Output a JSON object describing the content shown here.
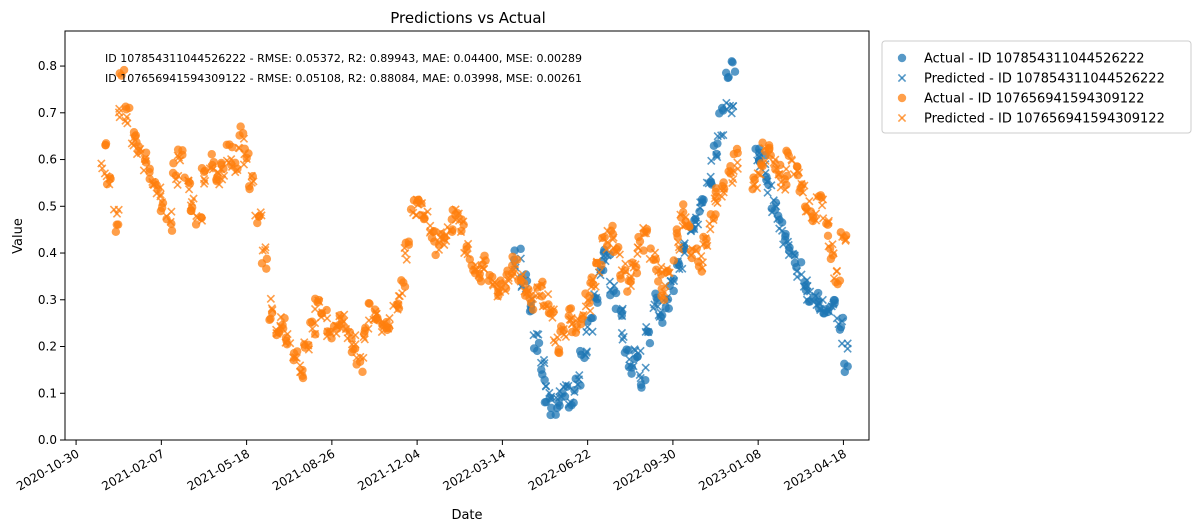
{
  "chart_data": {
    "type": "scatter",
    "title": "Predictions vs Actual",
    "xlabel": "Date",
    "ylabel": "Value",
    "xlim": [
      "2020-10-17",
      "2023-05-18"
    ],
    "ylim": [
      0.0,
      0.875
    ],
    "x_ticks": [
      "2020-10-30",
      "2021-02-07",
      "2021-05-18",
      "2021-08-26",
      "2021-12-04",
      "2022-03-14",
      "2022-06-22",
      "2022-09-30",
      "2023-01-08",
      "2023-04-18"
    ],
    "y_ticks": [
      "0.0",
      "0.1",
      "0.2",
      "0.3",
      "0.4",
      "0.5",
      "0.6",
      "0.7",
      "0.8"
    ],
    "grid": false,
    "legend_position": "outside-upper-right",
    "annotations": [
      "ID 107854311044526222 - RMSE: 0.05372, R2: 0.89943, MAE: 0.04400, MSE: 0.00289",
      "ID 107656941594309122 - RMSE: 0.05108, R2: 0.88084, MAE: 0.03998, MSE: 0.00261"
    ],
    "colors": {
      "blue": "#1f77b4",
      "orange": "#ff7f0e"
    },
    "series": [
      {
        "name": "Actual - ID 107854311044526222",
        "marker": "circle",
        "color": "#1f77b4",
        "x": [
          "2022-04-01",
          "2022-04-08",
          "2022-04-15",
          "2022-04-22",
          "2022-04-29",
          "2022-05-06",
          "2022-05-13",
          "2022-05-20",
          "2022-05-27",
          "2022-06-03",
          "2022-06-10",
          "2022-06-17",
          "2022-06-24",
          "2022-07-01",
          "2022-07-08",
          "2022-07-15",
          "2022-07-22",
          "2022-07-29",
          "2022-08-05",
          "2022-08-12",
          "2022-08-19",
          "2022-08-26",
          "2022-09-02",
          "2022-09-09",
          "2022-09-16",
          "2022-09-23",
          "2022-09-30",
          "2022-10-07",
          "2022-10-14",
          "2022-10-21",
          "2022-10-28",
          "2022-11-04",
          "2022-11-11",
          "2022-11-18",
          "2022-11-25",
          "2022-12-02",
          "2022-12-09",
          "2023-01-06",
          "2023-01-13",
          "2023-01-20",
          "2023-01-27",
          "2023-02-03",
          "2023-02-10",
          "2023-02-17",
          "2023-02-24",
          "2023-03-03",
          "2023-03-10",
          "2023-03-17",
          "2023-03-24",
          "2023-03-31",
          "2023-04-07",
          "2023-04-14",
          "2023-04-20"
        ],
        "y": [
          0.4,
          0.35,
          0.28,
          0.2,
          0.14,
          0.09,
          0.06,
          0.08,
          0.1,
          0.07,
          0.12,
          0.18,
          0.25,
          0.3,
          0.37,
          0.4,
          0.32,
          0.27,
          0.2,
          0.15,
          0.18,
          0.12,
          0.22,
          0.3,
          0.26,
          0.29,
          0.33,
          0.38,
          0.4,
          0.45,
          0.48,
          0.52,
          0.56,
          0.62,
          0.7,
          0.78,
          0.8,
          0.62,
          0.6,
          0.55,
          0.5,
          0.47,
          0.43,
          0.4,
          0.37,
          0.33,
          0.31,
          0.3,
          0.28,
          0.27,
          0.3,
          0.25,
          0.16
        ]
      },
      {
        "name": "Predicted - ID 107854311044526222",
        "marker": "x",
        "color": "#1f77b4",
        "x": [
          "2022-04-01",
          "2022-04-08",
          "2022-04-15",
          "2022-04-22",
          "2022-04-29",
          "2022-05-06",
          "2022-05-13",
          "2022-05-20",
          "2022-05-27",
          "2022-06-03",
          "2022-06-10",
          "2022-06-17",
          "2022-06-24",
          "2022-07-01",
          "2022-07-08",
          "2022-07-15",
          "2022-07-22",
          "2022-07-29",
          "2022-08-05",
          "2022-08-12",
          "2022-08-19",
          "2022-08-26",
          "2022-09-02",
          "2022-09-09",
          "2022-09-16",
          "2022-09-23",
          "2022-09-30",
          "2022-10-07",
          "2022-10-14",
          "2022-10-21",
          "2022-10-28",
          "2022-11-04",
          "2022-11-11",
          "2022-11-18",
          "2022-11-25",
          "2022-12-02",
          "2022-12-09",
          "2023-01-06",
          "2023-01-13",
          "2023-01-20",
          "2023-01-27",
          "2023-02-03",
          "2023-02-10",
          "2023-02-17",
          "2023-02-24",
          "2023-03-03",
          "2023-03-10",
          "2023-03-17",
          "2023-03-24",
          "2023-03-31",
          "2023-04-07",
          "2023-04-14",
          "2023-04-20"
        ],
        "y": [
          0.38,
          0.33,
          0.29,
          0.22,
          0.16,
          0.11,
          0.08,
          0.09,
          0.11,
          0.09,
          0.13,
          0.19,
          0.24,
          0.31,
          0.36,
          0.38,
          0.33,
          0.28,
          0.22,
          0.17,
          0.19,
          0.14,
          0.23,
          0.29,
          0.27,
          0.3,
          0.34,
          0.37,
          0.41,
          0.44,
          0.47,
          0.51,
          0.55,
          0.6,
          0.66,
          0.72,
          0.7,
          0.6,
          0.58,
          0.54,
          0.5,
          0.46,
          0.42,
          0.4,
          0.36,
          0.33,
          0.31,
          0.3,
          0.29,
          0.28,
          0.29,
          0.25,
          0.2
        ]
      },
      {
        "name": "Actual - ID 107656941594309122",
        "marker": "circle",
        "color": "#ff7f0e",
        "x": [
          "2020-12-01",
          "2020-12-08",
          "2020-12-15",
          "2020-12-22",
          "2020-12-29",
          "2021-01-05",
          "2021-01-12",
          "2021-01-19",
          "2021-01-26",
          "2021-02-02",
          "2021-02-09",
          "2021-02-16",
          "2021-02-23",
          "2021-03-02",
          "2021-03-09",
          "2021-03-16",
          "2021-03-23",
          "2021-03-30",
          "2021-04-06",
          "2021-04-13",
          "2021-04-20",
          "2021-04-27",
          "2021-05-04",
          "2021-05-11",
          "2021-05-18",
          "2021-05-25",
          "2021-06-01",
          "2021-06-08",
          "2021-06-15",
          "2021-06-22",
          "2021-06-29",
          "2021-07-06",
          "2021-07-13",
          "2021-07-20",
          "2021-07-27",
          "2021-08-03",
          "2021-08-10",
          "2021-08-17",
          "2021-08-24",
          "2021-08-31",
          "2021-09-07",
          "2021-09-14",
          "2021-09-21",
          "2021-09-28",
          "2021-10-05",
          "2021-10-12",
          "2021-10-19",
          "2021-10-26",
          "2021-11-02",
          "2021-11-09",
          "2021-11-16",
          "2021-11-23",
          "2021-11-30",
          "2021-12-07",
          "2021-12-14",
          "2021-12-21",
          "2021-12-28",
          "2022-01-04",
          "2022-01-11",
          "2022-01-18",
          "2022-01-25",
          "2022-02-01",
          "2022-02-08",
          "2022-02-15",
          "2022-02-22",
          "2022-03-01",
          "2022-03-08",
          "2022-03-15",
          "2022-03-22",
          "2022-03-29",
          "2022-04-05",
          "2022-04-12",
          "2022-04-19",
          "2022-04-26",
          "2022-05-03",
          "2022-05-10",
          "2022-05-17",
          "2022-05-24",
          "2022-05-31",
          "2022-06-07",
          "2022-06-14",
          "2022-06-21",
          "2022-06-28",
          "2022-07-05",
          "2022-07-12",
          "2022-07-19",
          "2022-07-26",
          "2022-08-02",
          "2022-08-09",
          "2022-08-16",
          "2022-08-23",
          "2022-08-30",
          "2022-09-06",
          "2022-09-13",
          "2022-09-20",
          "2022-09-27",
          "2022-10-04",
          "2022-10-11",
          "2022-10-18",
          "2022-10-25",
          "2022-11-01",
          "2022-11-08",
          "2022-11-15",
          "2022-11-22",
          "2022-11-29",
          "2022-12-06",
          "2022-12-13",
          "2023-01-03",
          "2023-01-10",
          "2023-01-17",
          "2023-01-24",
          "2023-01-31",
          "2023-02-07",
          "2023-02-14",
          "2023-02-21",
          "2023-02-28",
          "2023-03-07",
          "2023-03-14",
          "2023-03-21",
          "2023-03-28",
          "2023-04-04",
          "2023-04-11",
          "2023-04-18"
        ],
        "y": [
          0.62,
          0.55,
          0.45,
          0.78,
          0.72,
          0.66,
          0.63,
          0.6,
          0.57,
          0.54,
          0.5,
          0.46,
          0.58,
          0.62,
          0.55,
          0.5,
          0.47,
          0.57,
          0.6,
          0.56,
          0.58,
          0.62,
          0.58,
          0.66,
          0.61,
          0.55,
          0.47,
          0.38,
          0.27,
          0.23,
          0.25,
          0.21,
          0.18,
          0.14,
          0.2,
          0.24,
          0.3,
          0.27,
          0.22,
          0.24,
          0.26,
          0.23,
          0.2,
          0.16,
          0.23,
          0.28,
          0.26,
          0.24,
          0.25,
          0.28,
          0.33,
          0.42,
          0.5,
          0.52,
          0.48,
          0.44,
          0.41,
          0.43,
          0.46,
          0.49,
          0.46,
          0.4,
          0.36,
          0.35,
          0.38,
          0.34,
          0.31,
          0.33,
          0.36,
          0.38,
          0.34,
          0.31,
          0.29,
          0.33,
          0.3,
          0.26,
          0.2,
          0.23,
          0.27,
          0.24,
          0.26,
          0.3,
          0.34,
          0.38,
          0.43,
          0.45,
          0.4,
          0.36,
          0.33,
          0.37,
          0.42,
          0.45,
          0.4,
          0.35,
          0.31,
          0.37,
          0.44,
          0.49,
          0.46,
          0.4,
          0.37,
          0.43,
          0.47,
          0.53,
          0.55,
          0.58,
          0.62,
          0.55,
          0.6,
          0.63,
          0.61,
          0.58,
          0.56,
          0.61,
          0.58,
          0.54,
          0.5,
          0.47,
          0.52,
          0.45,
          0.4,
          0.34,
          0.44
        ]
      },
      {
        "name": "Predicted - ID 107656941594309122",
        "marker": "x",
        "color": "#ff7f0e",
        "x": [
          "2020-12-01",
          "2020-12-08",
          "2020-12-15",
          "2020-12-22",
          "2020-12-29",
          "2021-01-05",
          "2021-01-12",
          "2021-01-19",
          "2021-01-26",
          "2021-02-02",
          "2021-02-09",
          "2021-02-16",
          "2021-02-23",
          "2021-03-02",
          "2021-03-09",
          "2021-03-16",
          "2021-03-23",
          "2021-03-30",
          "2021-04-06",
          "2021-04-13",
          "2021-04-20",
          "2021-04-27",
          "2021-05-04",
          "2021-05-11",
          "2021-05-18",
          "2021-05-25",
          "2021-06-01",
          "2021-06-08",
          "2021-06-15",
          "2021-06-22",
          "2021-06-29",
          "2021-07-06",
          "2021-07-13",
          "2021-07-20",
          "2021-07-27",
          "2021-08-03",
          "2021-08-10",
          "2021-08-17",
          "2021-08-24",
          "2021-08-31",
          "2021-09-07",
          "2021-09-14",
          "2021-09-21",
          "2021-09-28",
          "2021-10-05",
          "2021-10-12",
          "2021-10-19",
          "2021-10-26",
          "2021-11-02",
          "2021-11-09",
          "2021-11-16",
          "2021-11-23",
          "2021-11-30",
          "2021-12-07",
          "2021-12-14",
          "2021-12-21",
          "2021-12-28",
          "2022-01-04",
          "2022-01-11",
          "2022-01-18",
          "2022-01-25",
          "2022-02-01",
          "2022-02-08",
          "2022-02-15",
          "2022-02-22",
          "2022-03-01",
          "2022-03-08",
          "2022-03-15",
          "2022-03-22",
          "2022-03-29",
          "2022-04-05",
          "2022-04-12",
          "2022-04-19",
          "2022-04-26",
          "2022-05-03",
          "2022-05-10",
          "2022-05-17",
          "2022-05-24",
          "2022-05-31",
          "2022-06-07",
          "2022-06-14",
          "2022-06-21",
          "2022-06-28",
          "2022-07-05",
          "2022-07-12",
          "2022-07-19",
          "2022-07-26",
          "2022-08-02",
          "2022-08-09",
          "2022-08-16",
          "2022-08-23",
          "2022-08-30",
          "2022-09-06",
          "2022-09-13",
          "2022-09-20",
          "2022-09-27",
          "2022-10-04",
          "2022-10-11",
          "2022-10-18",
          "2022-10-25",
          "2022-11-01",
          "2022-11-08",
          "2022-11-15",
          "2022-11-22",
          "2022-11-29",
          "2022-12-06",
          "2022-12-13",
          "2023-01-03",
          "2023-01-10",
          "2023-01-17",
          "2023-01-24",
          "2023-01-31",
          "2023-02-07",
          "2023-02-14",
          "2023-02-21",
          "2023-02-28",
          "2023-03-07",
          "2023-03-14",
          "2023-03-21",
          "2023-03-28",
          "2023-04-04",
          "2023-04-11",
          "2023-04-18"
        ],
        "y": [
          0.58,
          0.56,
          0.48,
          0.7,
          0.69,
          0.64,
          0.62,
          0.59,
          0.56,
          0.54,
          0.51,
          0.48,
          0.56,
          0.6,
          0.55,
          0.51,
          0.48,
          0.55,
          0.58,
          0.56,
          0.57,
          0.6,
          0.58,
          0.63,
          0.6,
          0.55,
          0.48,
          0.4,
          0.29,
          0.24,
          0.25,
          0.22,
          0.19,
          0.16,
          0.2,
          0.24,
          0.29,
          0.27,
          0.23,
          0.24,
          0.26,
          0.23,
          0.21,
          0.18,
          0.23,
          0.27,
          0.26,
          0.24,
          0.25,
          0.28,
          0.32,
          0.4,
          0.48,
          0.51,
          0.48,
          0.45,
          0.42,
          0.43,
          0.45,
          0.48,
          0.46,
          0.41,
          0.37,
          0.36,
          0.37,
          0.34,
          0.32,
          0.33,
          0.35,
          0.37,
          0.34,
          0.31,
          0.3,
          0.32,
          0.3,
          0.27,
          0.22,
          0.23,
          0.26,
          0.25,
          0.26,
          0.29,
          0.33,
          0.37,
          0.42,
          0.44,
          0.4,
          0.37,
          0.34,
          0.37,
          0.41,
          0.44,
          0.4,
          0.36,
          0.32,
          0.36,
          0.42,
          0.47,
          0.45,
          0.41,
          0.38,
          0.42,
          0.46,
          0.51,
          0.53,
          0.56,
          0.58,
          0.54,
          0.58,
          0.61,
          0.6,
          0.57,
          0.55,
          0.59,
          0.57,
          0.54,
          0.5,
          0.47,
          0.51,
          0.46,
          0.41,
          0.36,
          0.42
        ]
      }
    ]
  }
}
